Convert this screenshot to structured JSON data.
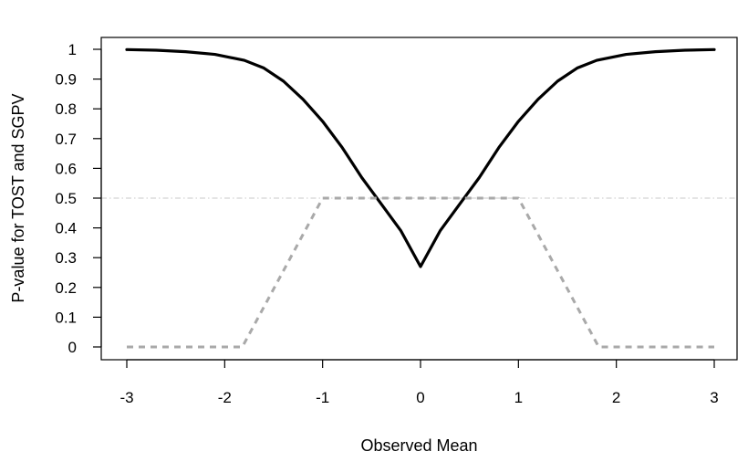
{
  "chart_data": {
    "type": "line",
    "title": "",
    "xlabel": "Observed Mean",
    "ylabel": "P-value for TOST and SGPV",
    "xlim": [
      -3,
      3
    ],
    "ylim": [
      0,
      1
    ],
    "xticks": [
      -3,
      -2,
      -1,
      0,
      1,
      2,
      3
    ],
    "xtick_labels": [
      "-3",
      "-2",
      "-1",
      "0",
      "1",
      "2",
      "3"
    ],
    "yticks": [
      0,
      0.1,
      0.2,
      0.3,
      0.4,
      0.5,
      0.6,
      0.7,
      0.8,
      0.9,
      1
    ],
    "ytick_labels": [
      "0",
      "0.1",
      "0.2",
      "0.3",
      "0.4",
      "0.5",
      "0.6",
      "0.7",
      "0.8",
      "0.9",
      "1"
    ],
    "grid": false,
    "legend": "none",
    "reference_lines": [
      {
        "axis": "y",
        "value": 0.5,
        "style": "dash-dot",
        "color": "#c8c8c8"
      }
    ],
    "series": [
      {
        "style": "solid",
        "color": "#000000",
        "x": [
          -3,
          -2.7,
          -2.4,
          -2.1,
          -1.8,
          -1.6,
          -1.4,
          -1.2,
          -1.0,
          -0.8,
          -0.6,
          -0.4,
          -0.2,
          0,
          0.2,
          0.4,
          0.6,
          0.8,
          1.0,
          1.2,
          1.4,
          1.6,
          1.8,
          2.1,
          2.4,
          2.7,
          3
        ],
        "y": [
          0.999,
          0.997,
          0.992,
          0.983,
          0.963,
          0.937,
          0.893,
          0.832,
          0.758,
          0.67,
          0.569,
          0.48,
          0.39,
          0.27,
          0.39,
          0.48,
          0.569,
          0.67,
          0.758,
          0.832,
          0.893,
          0.937,
          0.963,
          0.983,
          0.992,
          0.997,
          0.999
        ]
      },
      {
        "style": "dashed",
        "color": "#a9a9a9",
        "x": [
          -3,
          -1.82,
          -1.0,
          1.0,
          1.82,
          3
        ],
        "y": [
          0,
          0,
          0.5,
          0.5,
          0,
          0
        ]
      }
    ]
  }
}
